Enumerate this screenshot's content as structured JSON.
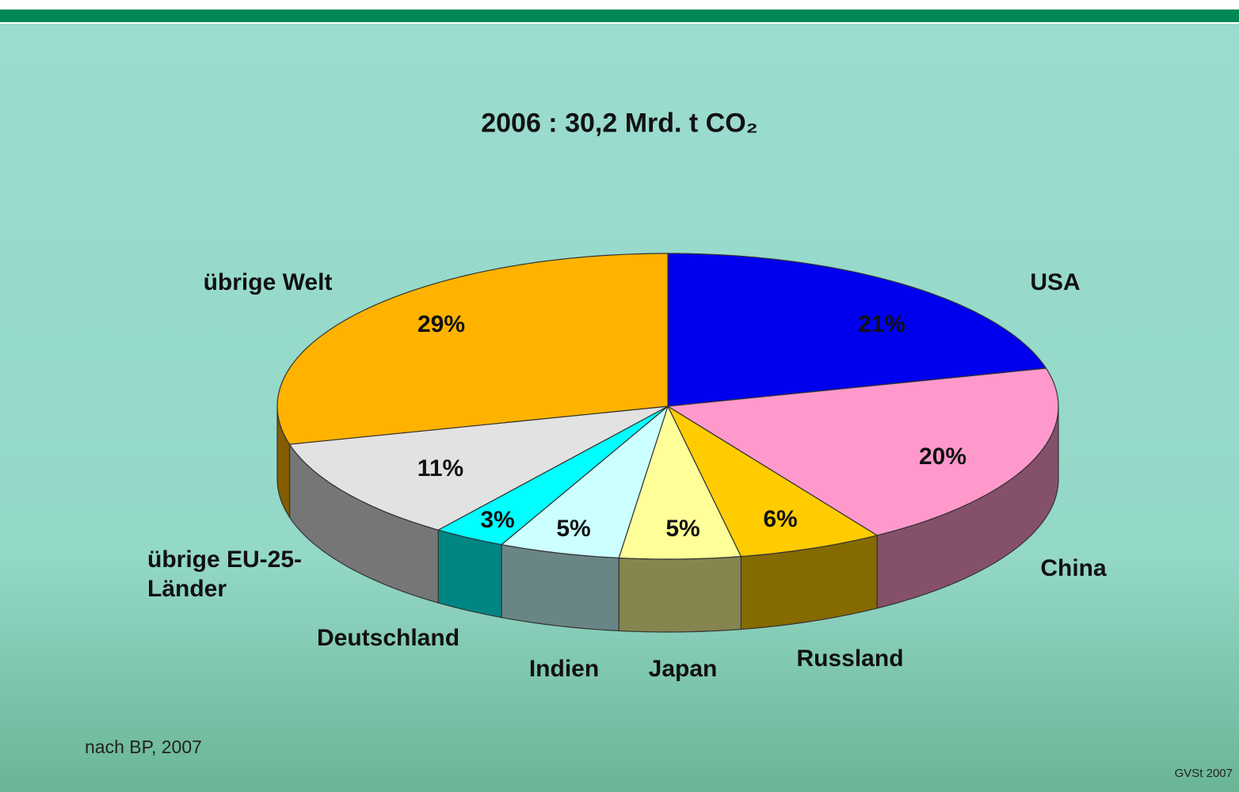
{
  "chart_data": {
    "type": "pie3d",
    "title": "2006 : 30,2 Mrd. t CO₂",
    "categories": [
      "USA",
      "China",
      "Russland",
      "Japan",
      "Indien",
      "Deutschland",
      "übrige EU-25-Länder",
      "übrige Welt"
    ],
    "values": [
      21,
      20,
      6,
      5,
      5,
      3,
      11,
      29
    ],
    "value_labels": [
      "21%",
      "20%",
      "6%",
      "5%",
      "5%",
      "3%",
      "11%",
      "29%"
    ],
    "colors": [
      "#0000ee",
      "#ff99cc",
      "#ffcc00",
      "#ffff99",
      "#ccffff",
      "#00ffff",
      "#e2e2e2",
      "#ffb300"
    ],
    "source": "nach BP, 2007",
    "credit": "GVSt 2007"
  }
}
